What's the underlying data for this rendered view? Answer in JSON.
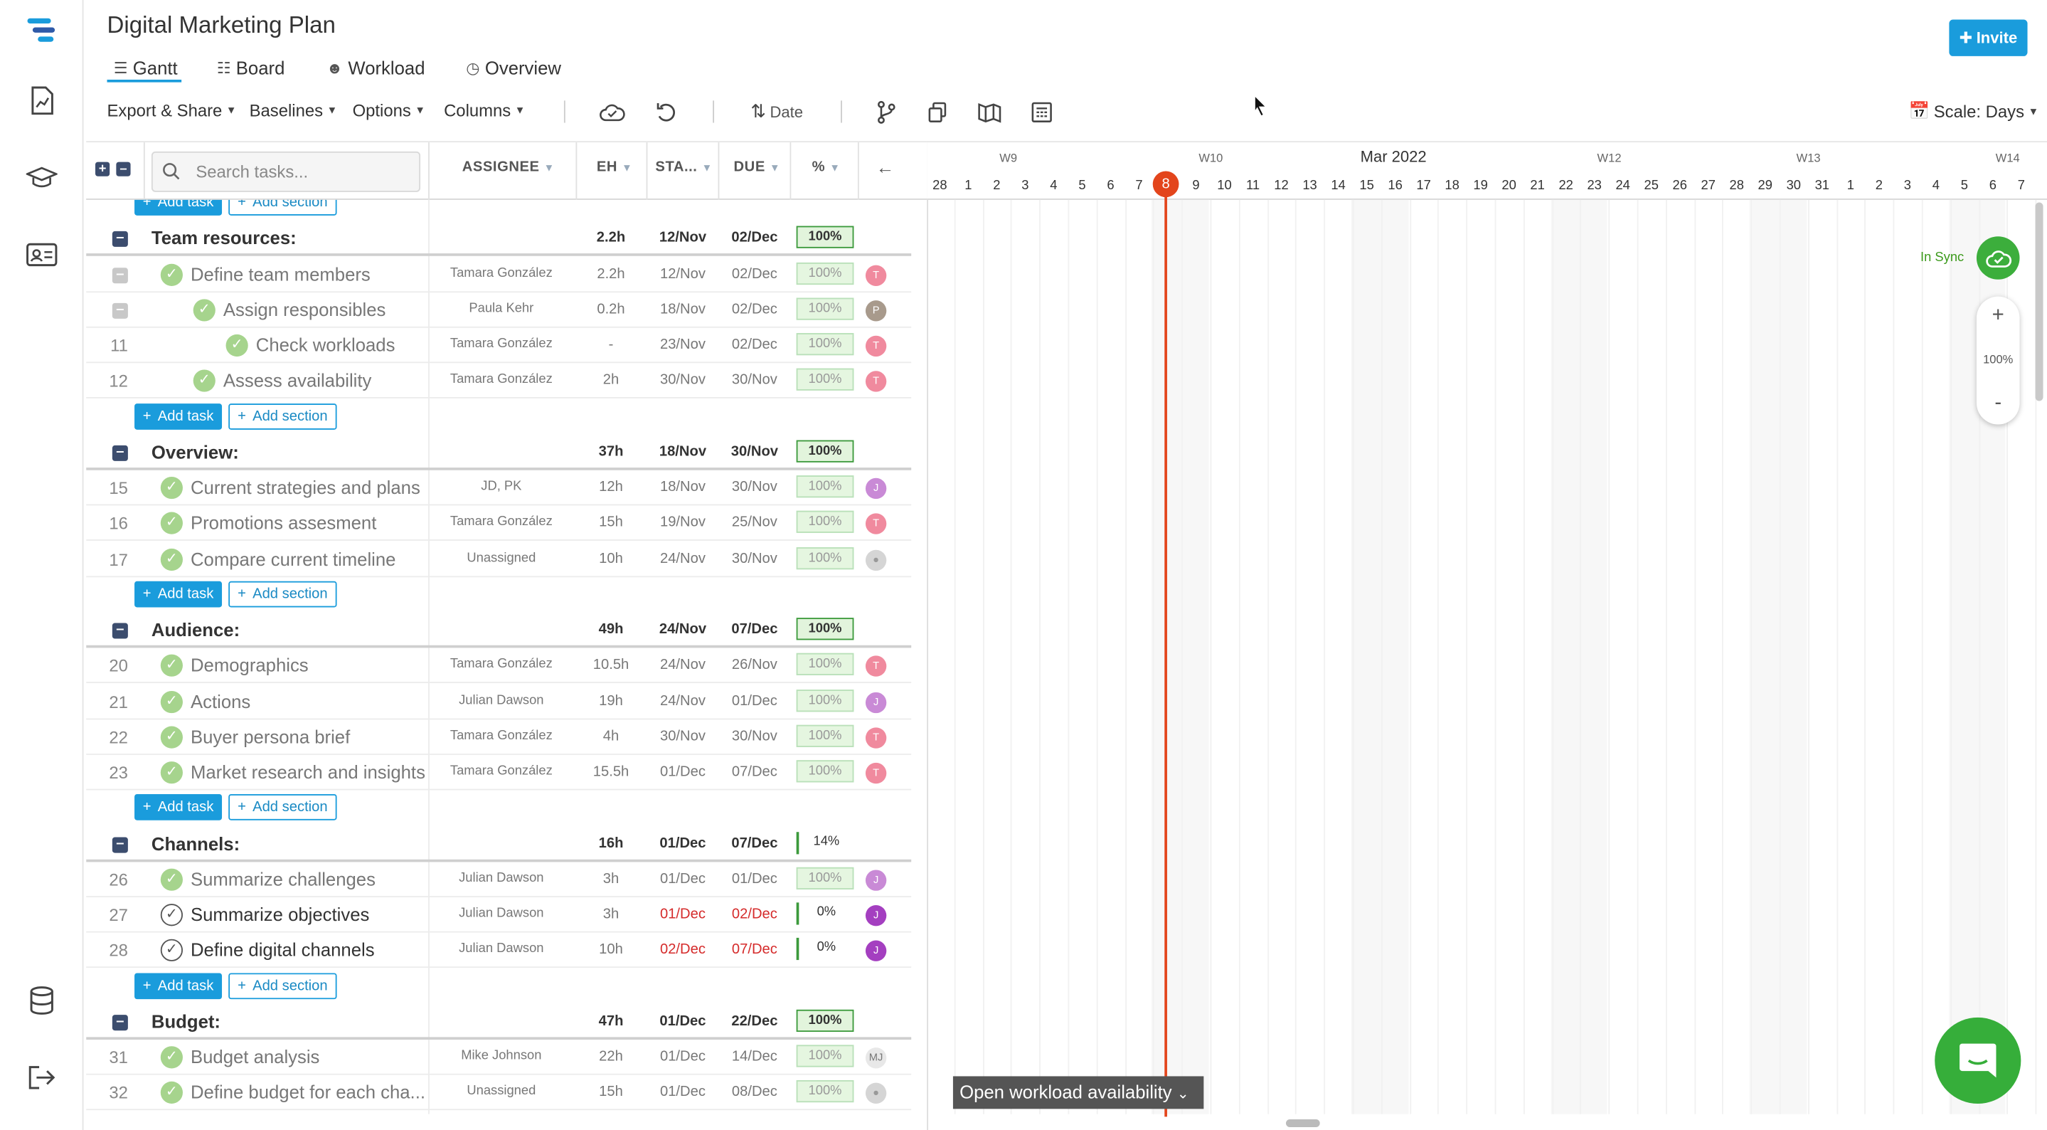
{
  "project_title": "Digital Marketing Plan",
  "tabs": [
    {
      "label": "Gantt"
    },
    {
      "label": "Board"
    },
    {
      "label": "Workload"
    },
    {
      "label": "Overview"
    }
  ],
  "invite_label": "Invite",
  "toolbar": {
    "export_share": "Export & Share",
    "baselines": "Baselines",
    "options": "Options",
    "columns": "Columns",
    "sort_date": "Date",
    "scale": "Scale: Days"
  },
  "grid": {
    "search_placeholder": "Search tasks...",
    "headers": {
      "assignee": "ASSIGNEE",
      "eh": "EH",
      "start": "STA...",
      "due": "DUE",
      "pct": "%"
    }
  },
  "rows": [
    {
      "type": "add",
      "add_task": "Add task",
      "add_section": "Add section"
    },
    {
      "type": "section",
      "name": "Team resources:",
      "eh": "2.2h",
      "start": "12/Nov",
      "due": "02/Dec",
      "pct": "100%"
    },
    {
      "type": "task",
      "num": "",
      "indent": 1,
      "toggle": true,
      "name": "Define team members",
      "assignee": "Tamara González",
      "eh": "2.2h",
      "start": "12/Nov",
      "due": "02/Dec",
      "pct": "100%",
      "avatar": "T",
      "avatar_color": "#f08a9e",
      "done": true
    },
    {
      "type": "task",
      "num": "",
      "indent": 2,
      "toggle": true,
      "name": "Assign responsibles",
      "assignee": "Paula Kehr",
      "eh": "0.2h",
      "start": "18/Nov",
      "due": "02/Dec",
      "pct": "100%",
      "avatar": "P",
      "avatar_color": "#a89a8c",
      "done": true
    },
    {
      "type": "task",
      "num": "11",
      "indent": 3,
      "name": "Check workloads",
      "assignee": "Tamara González",
      "eh": "-",
      "start": "23/Nov",
      "due": "02/Dec",
      "pct": "100%",
      "avatar": "T",
      "avatar_color": "#f08a9e",
      "done": true
    },
    {
      "type": "task",
      "num": "12",
      "indent": 2,
      "name": "Assess availability",
      "assignee": "Tamara González",
      "eh": "2h",
      "start": "30/Nov",
      "due": "30/Nov",
      "pct": "100%",
      "avatar": "T",
      "avatar_color": "#f08a9e",
      "done": true
    },
    {
      "type": "add",
      "add_task": "Add task",
      "add_section": "Add section"
    },
    {
      "type": "section",
      "name": "Overview:",
      "eh": "37h",
      "start": "18/Nov",
      "due": "30/Nov",
      "pct": "100%"
    },
    {
      "type": "task",
      "num": "15",
      "indent": 1,
      "name": "Current strategies and plans",
      "assignee": "JD, PK",
      "eh": "12h",
      "start": "18/Nov",
      "due": "30/Nov",
      "pct": "100%",
      "avatar": "J",
      "avatar_color": "#c98ad6",
      "done": true
    },
    {
      "type": "task",
      "num": "16",
      "indent": 1,
      "name": "Promotions assesment",
      "assignee": "Tamara González",
      "eh": "15h",
      "start": "19/Nov",
      "due": "25/Nov",
      "pct": "100%",
      "avatar": "T",
      "avatar_color": "#f08a9e",
      "done": true
    },
    {
      "type": "task",
      "num": "17",
      "indent": 1,
      "name": "Compare current timeline",
      "assignee": "Unassigned",
      "eh": "10h",
      "start": "24/Nov",
      "due": "30/Nov",
      "pct": "100%",
      "avatar": "",
      "avatar_color": "#d5d5d5",
      "done": true
    },
    {
      "type": "add",
      "add_task": "Add task",
      "add_section": "Add section"
    },
    {
      "type": "section",
      "name": "Audience:",
      "eh": "49h",
      "start": "24/Nov",
      "due": "07/Dec",
      "pct": "100%"
    },
    {
      "type": "task",
      "num": "20",
      "indent": 1,
      "name": "Demographics",
      "assignee": "Tamara González",
      "eh": "10.5h",
      "start": "24/Nov",
      "due": "26/Nov",
      "pct": "100%",
      "avatar": "T",
      "avatar_color": "#f08a9e",
      "done": true
    },
    {
      "type": "task",
      "num": "21",
      "indent": 1,
      "name": "Actions",
      "assignee": "Julian Dawson",
      "eh": "19h",
      "start": "24/Nov",
      "due": "01/Dec",
      "pct": "100%",
      "avatar": "J",
      "avatar_color": "#c98ad6",
      "done": true
    },
    {
      "type": "task",
      "num": "22",
      "indent": 1,
      "name": "Buyer persona brief",
      "assignee": "Tamara González",
      "eh": "4h",
      "start": "30/Nov",
      "due": "30/Nov",
      "pct": "100%",
      "avatar": "T",
      "avatar_color": "#f08a9e",
      "done": true
    },
    {
      "type": "task",
      "num": "23",
      "indent": 1,
      "name": "Market research and insights",
      "assignee": "Tamara González",
      "eh": "15.5h",
      "start": "01/Dec",
      "due": "07/Dec",
      "pct": "100%",
      "avatar": "T",
      "avatar_color": "#f08a9e",
      "done": true
    },
    {
      "type": "add",
      "add_task": "Add task",
      "add_section": "Add section"
    },
    {
      "type": "section",
      "name": "Channels:",
      "eh": "16h",
      "start": "01/Dec",
      "due": "07/Dec",
      "pct": "14%"
    },
    {
      "type": "task",
      "num": "26",
      "indent": 1,
      "name": "Summarize challenges",
      "assignee": "Julian Dawson",
      "eh": "3h",
      "start": "01/Dec",
      "due": "01/Dec",
      "pct": "100%",
      "avatar": "J",
      "avatar_color": "#c98ad6",
      "done": true
    },
    {
      "type": "task",
      "num": "27",
      "indent": 1,
      "name": "Summarize objectives",
      "assignee": "Julian Dawson",
      "eh": "3h",
      "start": "01/Dec",
      "due": "02/Dec",
      "pct": "0%",
      "avatar": "J",
      "avatar_color": "#a43fc0",
      "done": false,
      "late": true
    },
    {
      "type": "task",
      "num": "28",
      "indent": 1,
      "name": "Define digital channels",
      "assignee": "Julian Dawson",
      "eh": "10h",
      "start": "02/Dec",
      "due": "07/Dec",
      "pct": "0%",
      "avatar": "J",
      "avatar_color": "#a43fc0",
      "done": false,
      "late": true
    },
    {
      "type": "add",
      "add_task": "Add task",
      "add_section": "Add section"
    },
    {
      "type": "section",
      "name": "Budget:",
      "eh": "47h",
      "start": "01/Dec",
      "due": "22/Dec",
      "pct": "100%"
    },
    {
      "type": "task",
      "num": "31",
      "indent": 1,
      "name": "Budget analysis",
      "assignee": "Mike Johnson",
      "eh": "22h",
      "start": "01/Dec",
      "due": "14/Dec",
      "pct": "100%",
      "avatar": "MJ",
      "avatar_color": "#e8e8e8",
      "done": true
    },
    {
      "type": "task",
      "num": "32",
      "indent": 1,
      "name": "Define budget for each cha...",
      "assignee": "Unassigned",
      "eh": "15h",
      "start": "01/Dec",
      "due": "08/Dec",
      "pct": "100%",
      "avatar": "",
      "avatar_color": "#d5d5d5",
      "done": true
    }
  ],
  "timeline": {
    "month": "Mar 2022",
    "weeks": [
      {
        "label": "W9",
        "day_index": 2
      },
      {
        "label": "W10",
        "day_index": 9
      },
      {
        "label": "W12",
        "day_index": 23
      },
      {
        "label": "W13",
        "day_index": 30
      },
      {
        "label": "W14",
        "day_index": 37
      }
    ],
    "days": [
      "28",
      "1",
      "2",
      "3",
      "4",
      "5",
      "6",
      "7",
      "8",
      "9",
      "10",
      "11",
      "12",
      "13",
      "14",
      "15",
      "16",
      "17",
      "18",
      "19",
      "20",
      "21",
      "22",
      "23",
      "24",
      "25",
      "26",
      "27",
      "28",
      "29",
      "30",
      "31",
      "1",
      "2",
      "3",
      "4",
      "5",
      "6",
      "7"
    ],
    "today": "8",
    "today_index": 8
  },
  "sync_status": "In Sync",
  "zoom": {
    "plus": "+",
    "level": "100%",
    "minus": "-"
  },
  "workload_button": "Open workload availability"
}
